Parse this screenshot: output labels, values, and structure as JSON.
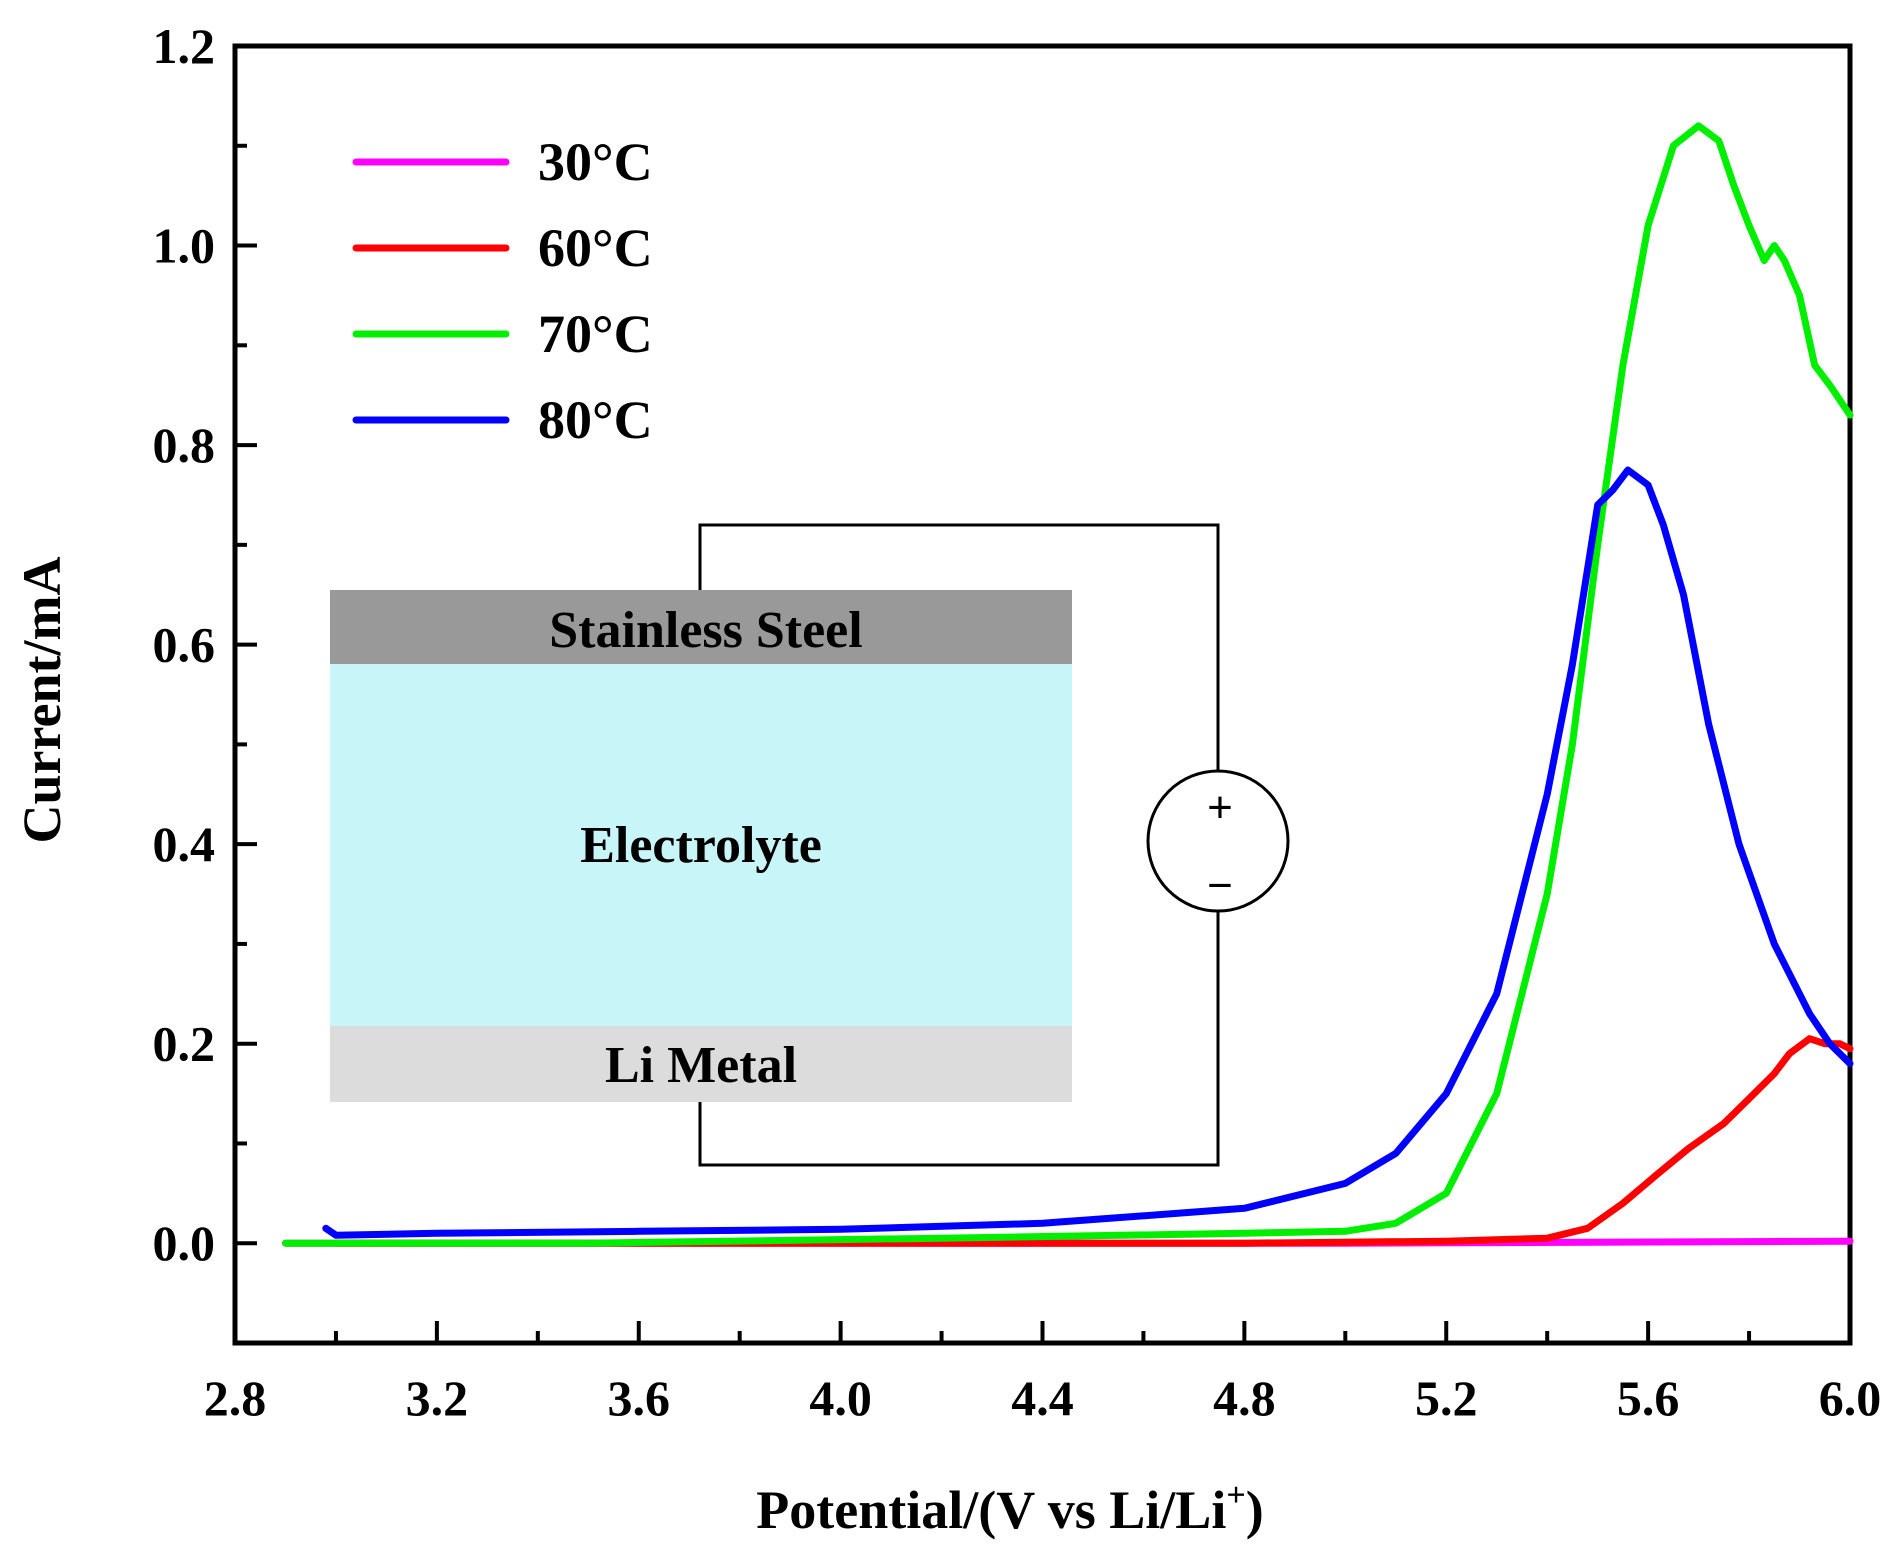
{
  "chart_data": {
    "type": "line",
    "title": "",
    "xlabel_main": "Potential/(V vs Li/Li",
    "xlabel_sup": "+",
    "xlabel_close": ")",
    "ylabel": "Current/mA",
    "xlim": [
      2.8,
      6.0
    ],
    "ylim": [
      -0.1,
      1.2
    ],
    "x_ticks": [
      "2.8",
      "3.2",
      "3.6",
      "4.0",
      "4.4",
      "4.8",
      "5.2",
      "5.6",
      "6.0"
    ],
    "y_ticks": [
      "0.0",
      "0.2",
      "0.4",
      "0.6",
      "0.8",
      "1.0",
      "1.2"
    ],
    "legend_position": "top-left",
    "series": [
      {
        "name": "30°C",
        "color": "#ff00ff",
        "x": [
          2.9,
          3.5,
          4.0,
          4.5,
          5.0,
          5.5,
          6.0
        ],
        "y": [
          0.0,
          0.0,
          0.0,
          0.0,
          0.0,
          0.001,
          0.002
        ]
      },
      {
        "name": "60°C",
        "color": "#ff0000",
        "x": [
          3.0,
          3.6,
          4.2,
          4.8,
          5.2,
          5.4,
          5.48,
          5.55,
          5.62,
          5.68,
          5.75,
          5.8,
          5.85,
          5.88,
          5.92,
          5.95,
          5.98,
          6.0
        ],
        "y": [
          0.0,
          0.0,
          0.0,
          0.0,
          0.002,
          0.005,
          0.015,
          0.04,
          0.07,
          0.095,
          0.12,
          0.145,
          0.17,
          0.19,
          0.205,
          0.2,
          0.2,
          0.195
        ]
      },
      {
        "name": "70°C",
        "color": "#00ee00",
        "x": [
          2.9,
          3.5,
          4.2,
          4.8,
          5.0,
          5.1,
          5.2,
          5.3,
          5.4,
          5.45,
          5.5,
          5.55,
          5.6,
          5.65,
          5.7,
          5.74,
          5.77,
          5.8,
          5.83,
          5.85,
          5.87,
          5.9,
          5.93,
          5.96,
          6.0
        ],
        "y": [
          0.0,
          0.0,
          0.005,
          0.01,
          0.012,
          0.02,
          0.05,
          0.15,
          0.35,
          0.5,
          0.7,
          0.88,
          1.02,
          1.1,
          1.12,
          1.105,
          1.06,
          1.02,
          0.985,
          1.0,
          0.985,
          0.95,
          0.88,
          0.86,
          0.83
        ]
      },
      {
        "name": "80°C",
        "color": "#0000ff",
        "x": [
          2.98,
          3.0,
          3.2,
          3.6,
          4.0,
          4.4,
          4.8,
          5.0,
          5.1,
          5.2,
          5.3,
          5.4,
          5.45,
          5.5,
          5.53,
          5.56,
          5.6,
          5.63,
          5.67,
          5.72,
          5.78,
          5.85,
          5.92,
          5.96,
          6.0
        ],
        "y": [
          0.015,
          0.008,
          0.01,
          0.012,
          0.014,
          0.02,
          0.035,
          0.06,
          0.09,
          0.15,
          0.25,
          0.45,
          0.58,
          0.74,
          0.755,
          0.775,
          0.76,
          0.72,
          0.65,
          0.52,
          0.4,
          0.3,
          0.23,
          0.2,
          0.18
        ]
      }
    ]
  },
  "inset": {
    "top_layer": "Stainless Steel",
    "middle_layer": "Electrolyte",
    "bottom_layer": "Li Metal",
    "plus_sign": "+",
    "minus_sign": "−"
  }
}
